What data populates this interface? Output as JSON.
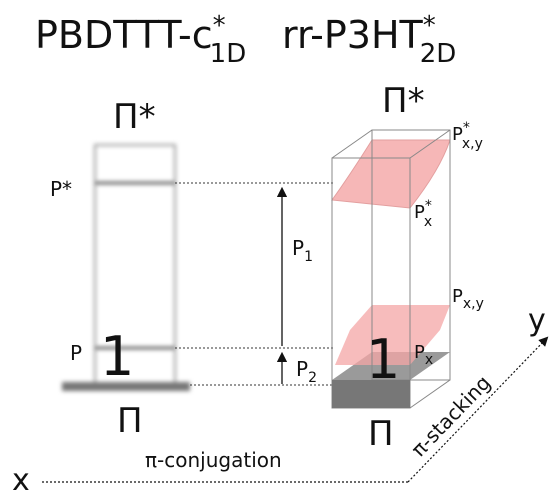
{
  "titles": {
    "left": {
      "main": "PBDTTT-c",
      "sup": "*",
      "sub": "1D"
    },
    "right": {
      "main": "rr-P3HT",
      "sup": "*",
      "sub": "2D"
    }
  },
  "left_column": {
    "top": "Π*",
    "bottom": "Π",
    "p_star": "P*",
    "p": "P",
    "one": "1"
  },
  "right_column": {
    "top": "Π*",
    "bottom": "Π",
    "pxy_star": {
      "main": "P",
      "sup": "*",
      "sub": "x,y"
    },
    "px_star": {
      "main": "P",
      "sup": "*",
      "sub": "x"
    },
    "pxy": {
      "main": "P",
      "sub": "x,y"
    },
    "px": {
      "main": "P",
      "sub": "x"
    },
    "one": "1"
  },
  "transitions": {
    "p1": {
      "main": "P",
      "sub": "1"
    },
    "p2": {
      "main": "P",
      "sub": "2"
    }
  },
  "axes": {
    "x": "x",
    "x_label": "π-conjugation",
    "y": "y",
    "y_label": "π-stacking"
  }
}
